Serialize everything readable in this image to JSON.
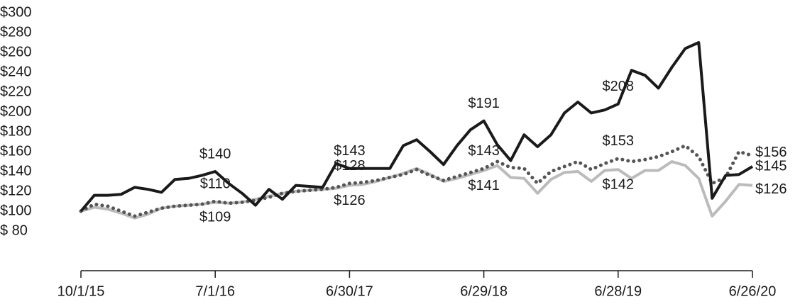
{
  "chart_data": {
    "type": "line",
    "categories": [
      "10/1/15",
      null,
      null,
      null,
      null,
      null,
      null,
      null,
      null,
      null,
      "7/1/16",
      null,
      null,
      null,
      null,
      null,
      null,
      null,
      null,
      null,
      "6/30/17",
      null,
      null,
      null,
      null,
      null,
      null,
      null,
      null,
      null,
      "6/29/18",
      null,
      null,
      null,
      null,
      null,
      null,
      null,
      null,
      null,
      "6/28/19",
      null,
      null,
      null,
      null,
      null,
      null,
      null,
      null,
      null,
      "6/26/20"
    ],
    "series": [
      {
        "color": "#bbbbbb",
        "style": "solid",
        "values": [
          100,
          104,
          102,
          98,
          93,
          97,
          103,
          105,
          106,
          107,
          109,
          108,
          109,
          112,
          115,
          118,
          120,
          121,
          122,
          123,
          126,
          127,
          130,
          134,
          138,
          143,
          137,
          130,
          133,
          137,
          141,
          146,
          134,
          133,
          118,
          132,
          139,
          140,
          130,
          141,
          142,
          133,
          141,
          141,
          150,
          146,
          133,
          95,
          110,
          127,
          126
        ],
        "value_labels": [
          null,
          null,
          null,
          null,
          null,
          null,
          null,
          null,
          null,
          null,
          "$109",
          null,
          null,
          null,
          null,
          null,
          null,
          null,
          null,
          null,
          "$126",
          null,
          null,
          null,
          null,
          null,
          null,
          null,
          null,
          null,
          "$141",
          null,
          null,
          null,
          null,
          null,
          null,
          null,
          null,
          null,
          "$142",
          null,
          null,
          null,
          null,
          null,
          null,
          null,
          null,
          null,
          "$126"
        ]
      },
      {
        "color": "#555555",
        "style": "dotted",
        "values": [
          100,
          107,
          105,
          100,
          95,
          99,
          103,
          105,
          106,
          107,
          110,
          108,
          109,
          111,
          114,
          118,
          120,
          121,
          122,
          124,
          128,
          129,
          131,
          134,
          137,
          142,
          136,
          131,
          135,
          139,
          143,
          150,
          144,
          143,
          128,
          140,
          145,
          150,
          142,
          148,
          153,
          150,
          152,
          155,
          160,
          166,
          155,
          128,
          134,
          160,
          156
        ],
        "value_labels": [
          null,
          null,
          null,
          null,
          null,
          null,
          null,
          null,
          null,
          null,
          "$110",
          null,
          null,
          null,
          null,
          null,
          null,
          null,
          null,
          null,
          "$128",
          null,
          null,
          null,
          null,
          null,
          null,
          null,
          null,
          null,
          "$143",
          null,
          null,
          null,
          null,
          null,
          null,
          null,
          null,
          null,
          "$153",
          null,
          null,
          null,
          null,
          null,
          null,
          null,
          null,
          null,
          "$156"
        ]
      },
      {
        "color": "#1a1a1a",
        "style": "solid",
        "values": [
          100,
          116,
          116,
          117,
          124,
          122,
          119,
          132,
          133,
          136,
          140,
          128,
          118,
          106,
          122,
          112,
          126,
          125,
          124,
          148,
          143,
          143,
          143,
          143,
          166,
          172,
          160,
          147,
          166,
          182,
          191,
          167,
          151,
          177,
          165,
          177,
          199,
          210,
          199,
          202,
          208,
          242,
          237,
          224,
          245,
          264,
          270,
          113,
          136,
          137,
          145
        ],
        "value_labels": [
          null,
          null,
          null,
          null,
          null,
          null,
          null,
          null,
          null,
          null,
          "$140",
          null,
          null,
          null,
          null,
          null,
          null,
          null,
          null,
          null,
          "$143",
          null,
          null,
          null,
          null,
          null,
          null,
          null,
          null,
          null,
          "$191",
          null,
          null,
          null,
          null,
          null,
          null,
          null,
          null,
          null,
          "$208",
          null,
          null,
          null,
          null,
          null,
          null,
          null,
          null,
          null,
          "$145"
        ]
      }
    ],
    "ylim": [
      40,
      300
    ],
    "yticks": [
      {
        "value": 80,
        "label": "$ 80"
      },
      {
        "value": 100,
        "label": "$100"
      },
      {
        "value": 120,
        "label": "$120"
      },
      {
        "value": 140,
        "label": "$140"
      },
      {
        "value": 160,
        "label": "$160"
      },
      {
        "value": 180,
        "label": "$180"
      },
      {
        "value": 200,
        "label": "$200"
      },
      {
        "value": 220,
        "label": "$220"
      },
      {
        "value": 240,
        "label": "$240"
      },
      {
        "value": 260,
        "label": "$260"
      },
      {
        "value": 280,
        "label": "$280"
      },
      {
        "value": 300,
        "label": "$300"
      }
    ],
    "grid": false
  }
}
